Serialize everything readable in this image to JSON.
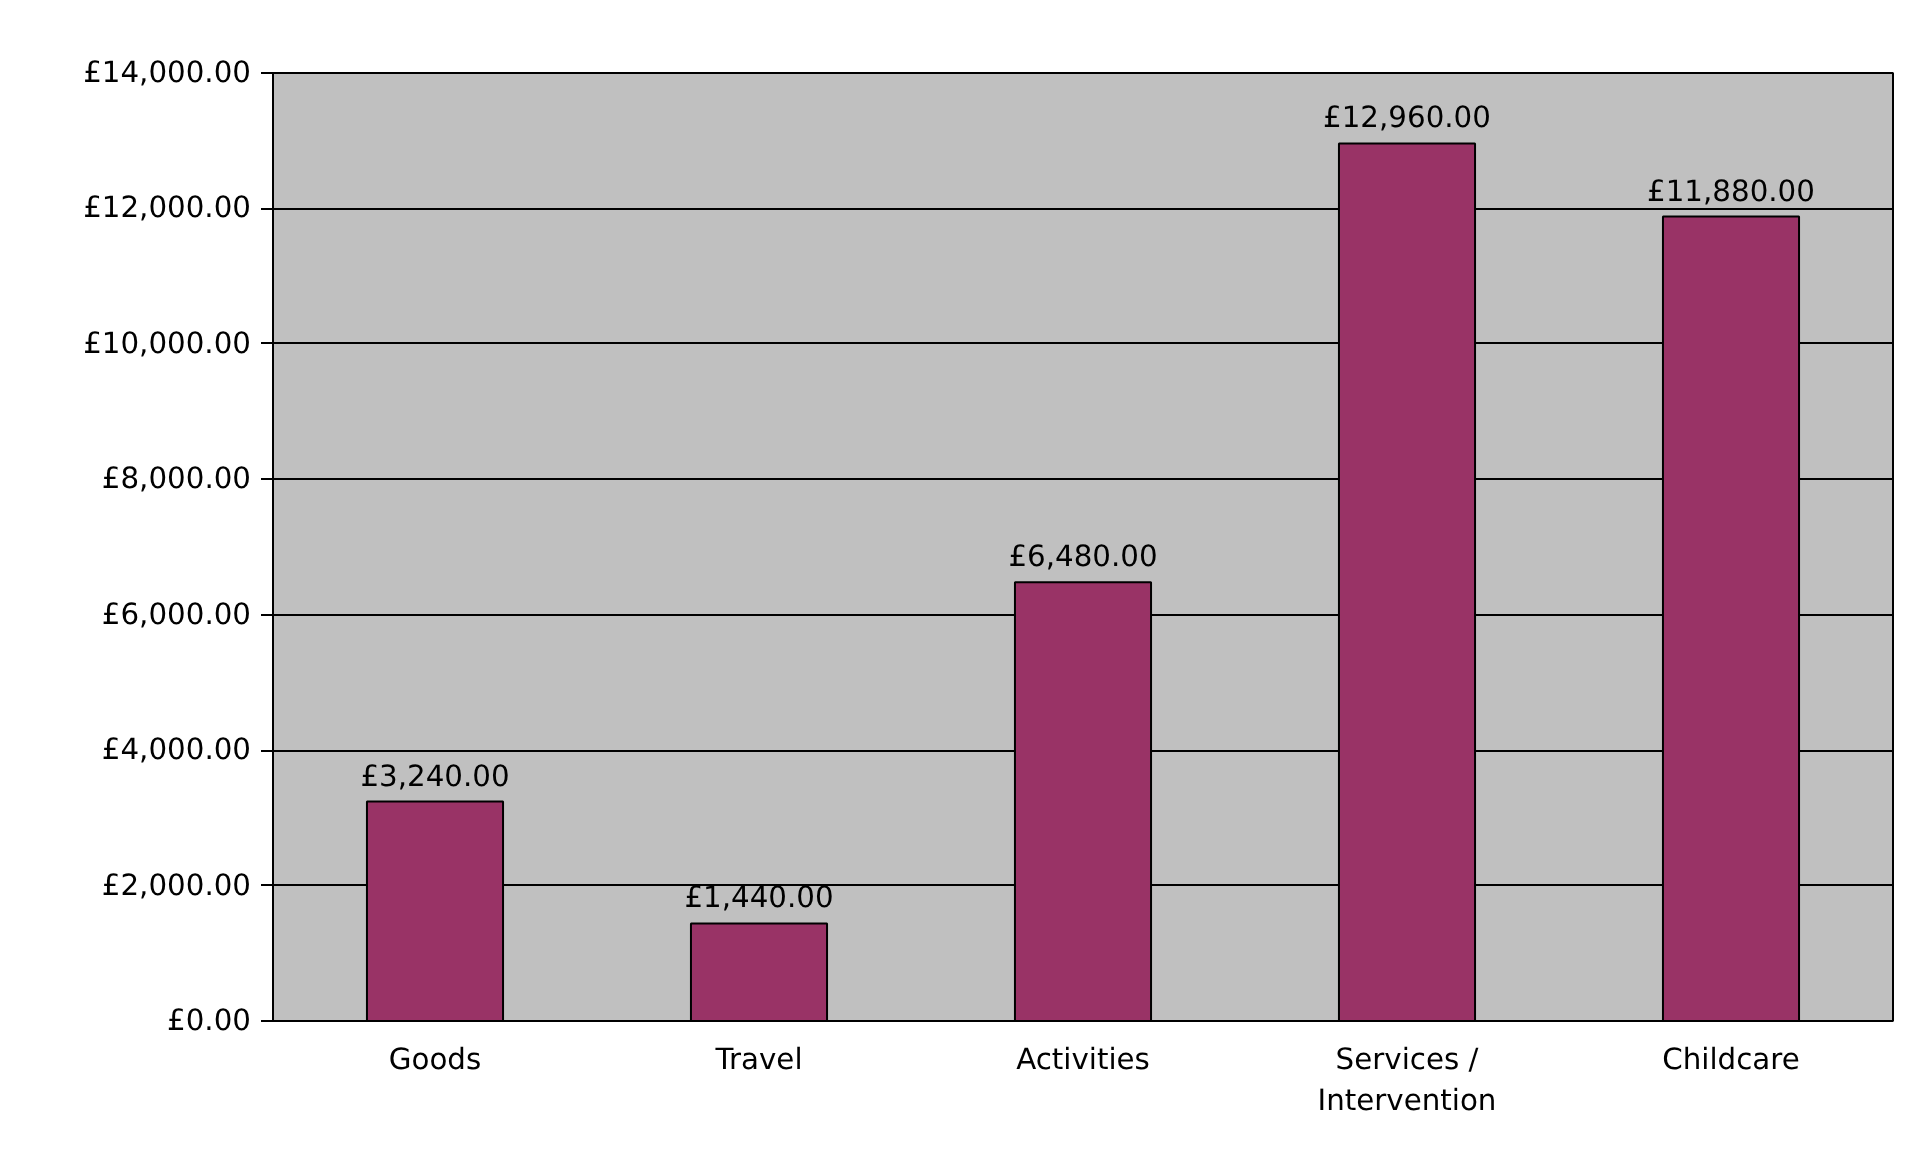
{
  "chart_data": {
    "type": "bar",
    "categories": [
      "Goods",
      "Travel",
      "Activities",
      "Services / Intervention",
      "Childcare"
    ],
    "values": [
      3240,
      1440,
      6480,
      12960,
      11880
    ],
    "value_labels": [
      "£3,240.00",
      "£1,440.00",
      "£6,480.00",
      "£12,960.00",
      "£11,880.00"
    ],
    "color": "#993366",
    "ylim": [
      0,
      14000
    ],
    "yticks": [
      {
        "value": 0,
        "label": "£0.00"
      },
      {
        "value": 2000,
        "label": "£2,000.00"
      },
      {
        "value": 4000,
        "label": "£4,000.00"
      },
      {
        "value": 6000,
        "label": "£6,000.00"
      },
      {
        "value": 8000,
        "label": "£8,000.00"
      },
      {
        "value": 10000,
        "label": "£10,000.00"
      },
      {
        "value": 12000,
        "label": "£12,000.00"
      },
      {
        "value": 14000,
        "label": "£14,000.00"
      }
    ],
    "grid": "y"
  }
}
